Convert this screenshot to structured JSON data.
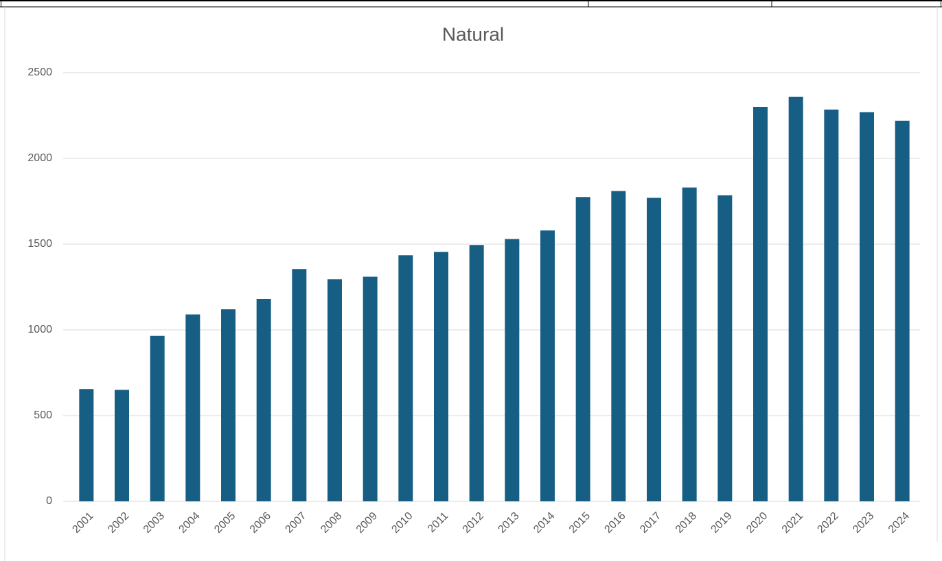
{
  "chart_data": {
    "type": "bar",
    "title": "Natural",
    "categories": [
      "2001",
      "2002",
      "2003",
      "2004",
      "2005",
      "2006",
      "2007",
      "2008",
      "2009",
      "2010",
      "2011",
      "2012",
      "2013",
      "2014",
      "2015",
      "2016",
      "2017",
      "2018",
      "2019",
      "2020",
      "2021",
      "2022",
      "2023",
      "2024"
    ],
    "values": [
      655,
      650,
      965,
      1090,
      1120,
      1180,
      1355,
      1295,
      1310,
      1435,
      1455,
      1495,
      1530,
      1580,
      1775,
      1810,
      1770,
      1830,
      1785,
      2300,
      2360,
      2285,
      2270,
      2220
    ],
    "color": "#165e83",
    "ylim": [
      0,
      2500
    ],
    "yticks": [
      0,
      500,
      1000,
      1500,
      2000,
      2500
    ],
    "grid": true
  }
}
